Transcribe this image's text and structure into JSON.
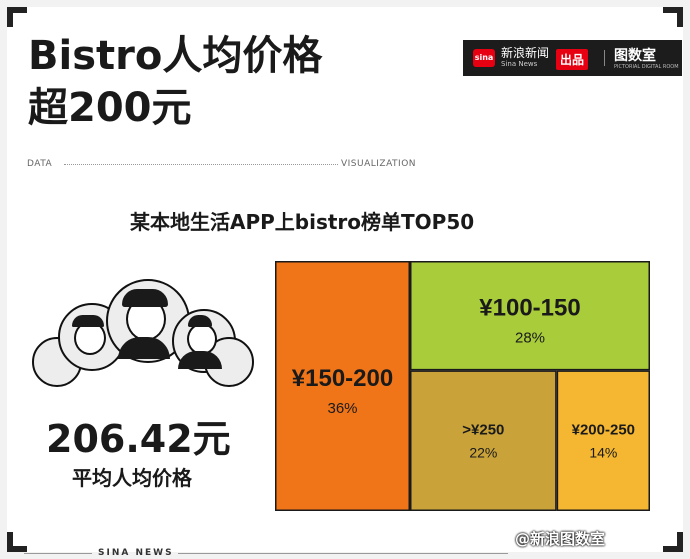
{
  "title_line1": "Bistro人均价格",
  "title_line2": "超200元",
  "logo": {
    "sina": "新浪新闻",
    "sina_sub": "Sina News",
    "chupin": "出品",
    "tushi": "图数室",
    "tushi_sub": "PICTORIAL DIGITAL ROOM"
  },
  "header_left": "DATA",
  "header_right": "VISUALIZATION",
  "average": {
    "value": "206.42元",
    "label": "平均人均价格"
  },
  "footer": {
    "brand": "SINA NEWS",
    "watermark": "@新浪图数室"
  },
  "colors": {
    "orange": "#f07418",
    "green": "#a8cc3a",
    "khaki": "#c9a33a",
    "yellow": "#f5b731"
  },
  "chart_data": {
    "type": "treemap",
    "title": "某本地生活APP上bistro榜单TOP50",
    "items": [
      {
        "label": "¥150-200",
        "percent_label": "36%",
        "value": 36,
        "color": "#f07418"
      },
      {
        "label": "¥100-150",
        "percent_label": "28%",
        "value": 28,
        "color": "#a8cc3a"
      },
      {
        "label": ">¥250",
        "percent_label": "22%",
        "value": 22,
        "color": "#c9a33a"
      },
      {
        "label": "¥200-250",
        "percent_label": "14%",
        "value": 14,
        "color": "#f5b731"
      }
    ]
  }
}
